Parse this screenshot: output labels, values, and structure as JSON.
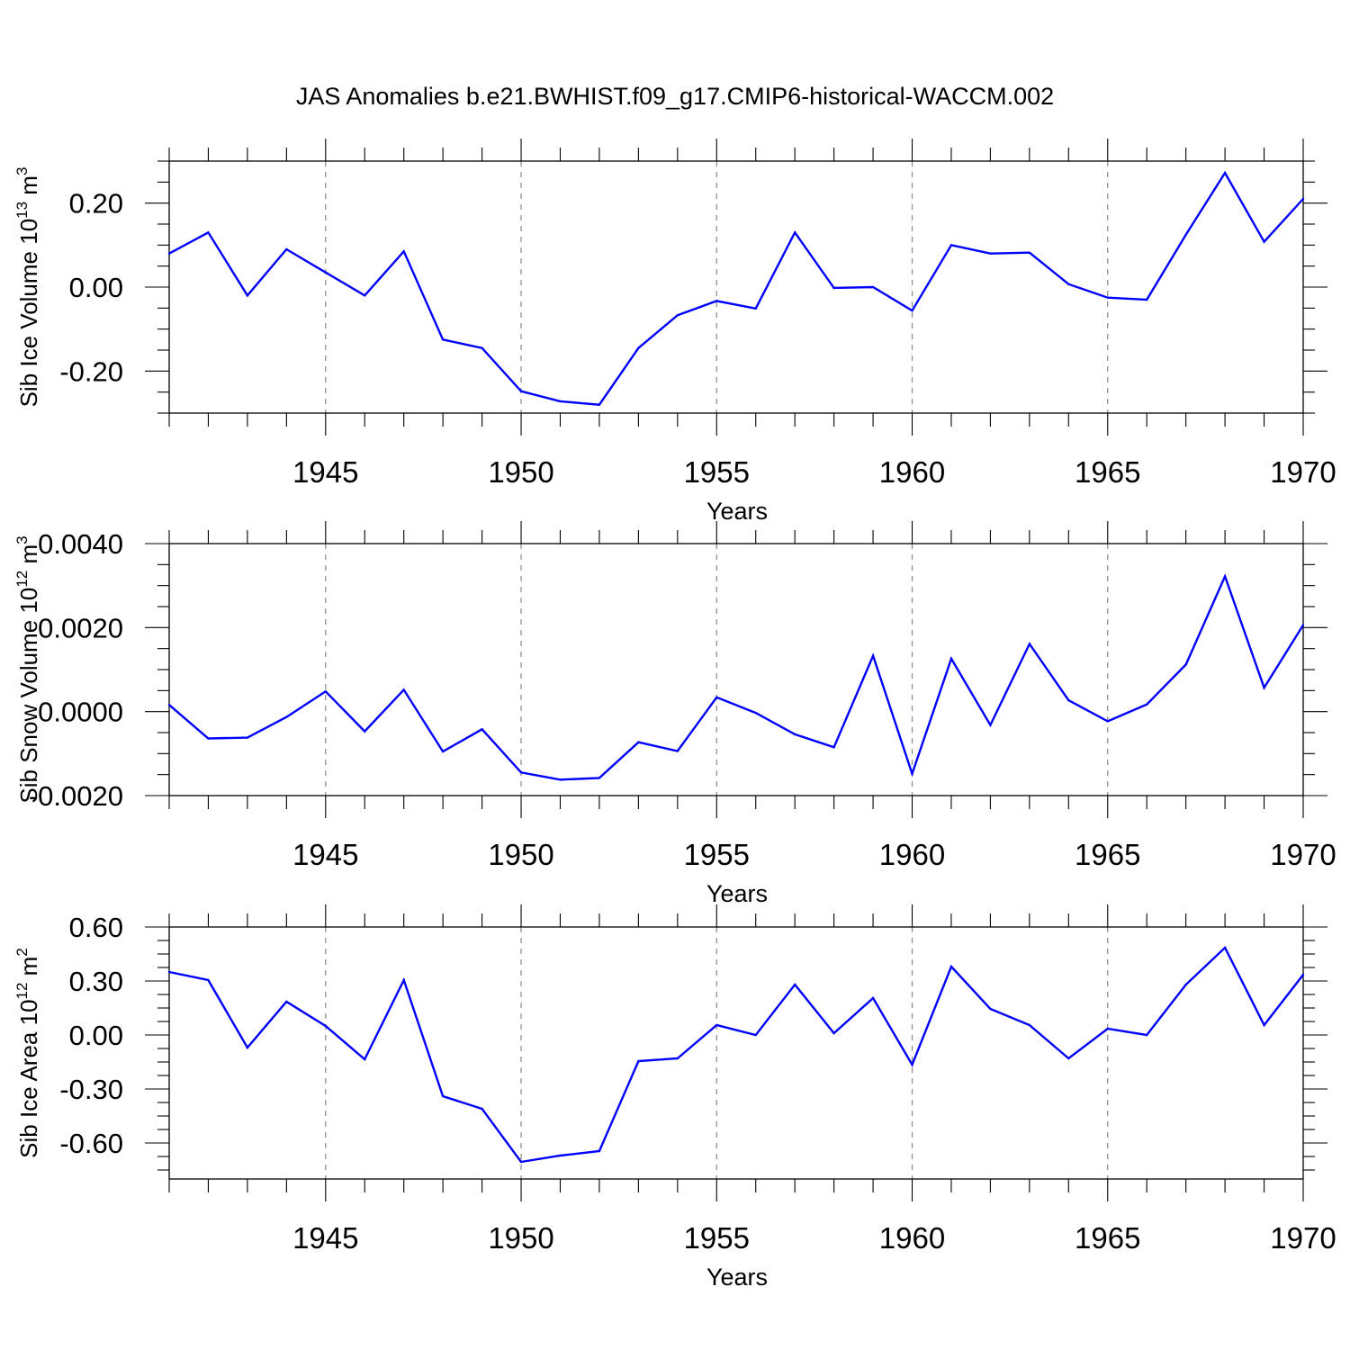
{
  "title": "JAS Anomalies b.e21.BWHIST.f09_g17.CMIP6-historical-WACCM.002",
  "colors": {
    "line": "#0000ff",
    "axis": "#000000",
    "grid": "#888888",
    "background": "#ffffff"
  },
  "chart_data": [
    {
      "type": "line",
      "name": "sib-ice-volume",
      "ylabel_prefix": "Sib Ice Volume 10",
      "ylabel_exp": "13",
      "ylabel_unit": " m",
      "ylabel_unit_exp": "3",
      "xlabel": "Years",
      "xlim": [
        1941,
        1970
      ],
      "ylim": [
        -0.3,
        0.3
      ],
      "xticks": [
        "1945",
        "1950",
        "1955",
        "1960",
        "1965",
        "1970"
      ],
      "yticks": [
        "0.20",
        "0.00",
        "-0.20"
      ],
      "ytick_values": [
        0.2,
        0.0,
        -0.2
      ],
      "grid": "vertical dashed at major x ticks",
      "series": [
        {
          "name": "Sib Ice Volume",
          "x": [
            1941,
            1942,
            1943,
            1944,
            1945,
            1946,
            1947,
            1948,
            1949,
            1950,
            1951,
            1952,
            1953,
            1954,
            1955,
            1956,
            1957,
            1958,
            1959,
            1960,
            1961,
            1962,
            1963,
            1964,
            1965,
            1966,
            1967,
            1968,
            1969,
            1970
          ],
          "values": [
            0.08,
            0.13,
            -0.02,
            0.09,
            0.035,
            -0.02,
            0.085,
            -0.125,
            -0.145,
            -0.248,
            -0.272,
            -0.28,
            -0.145,
            -0.067,
            -0.033,
            -0.051,
            0.13,
            -0.002,
            0.0,
            -0.056,
            0.1,
            0.08,
            0.082,
            0.007,
            -0.025,
            -0.03,
            0.125,
            0.272,
            0.108,
            0.21
          ]
        }
      ]
    },
    {
      "type": "line",
      "name": "sib-snow-volume",
      "ylabel_prefix": "Sib Snow Volume 10",
      "ylabel_exp": "12",
      "ylabel_unit": " m",
      "ylabel_unit_exp": "3",
      "xlabel": "Years",
      "xlim": [
        1941,
        1970
      ],
      "ylim": [
        -0.002,
        0.004
      ],
      "xticks": [
        "1945",
        "1950",
        "1955",
        "1960",
        "1965",
        "1970"
      ],
      "yticks": [
        "0.0040",
        "0.0020",
        "0.0000",
        "-0.0020"
      ],
      "ytick_values": [
        0.004,
        0.002,
        0.0,
        -0.002
      ],
      "grid": "vertical dashed at major x ticks",
      "series": [
        {
          "name": "Sib Snow Volume",
          "x": [
            1941,
            1942,
            1943,
            1944,
            1945,
            1946,
            1947,
            1948,
            1949,
            1950,
            1951,
            1952,
            1953,
            1954,
            1955,
            1956,
            1957,
            1958,
            1959,
            1960,
            1961,
            1962,
            1963,
            1964,
            1965,
            1966,
            1967,
            1968,
            1969,
            1970
          ],
          "values": [
            0.00016,
            -0.00064,
            -0.00062,
            -0.00013,
            0.00048,
            -0.00047,
            0.00052,
            -0.00095,
            -0.00042,
            -0.00145,
            -0.00162,
            -0.00158,
            -0.00073,
            -0.00094,
            0.00034,
            -3e-05,
            -0.00054,
            -0.00085,
            0.00133,
            -0.00148,
            0.00126,
            -0.00032,
            0.00161,
            0.00027,
            -0.00023,
            0.00017,
            0.00112,
            0.00322,
            0.00057,
            0.00206
          ]
        }
      ]
    },
    {
      "type": "line",
      "name": "sib-ice-area",
      "ylabel_prefix": "Sib Ice Area 10",
      "ylabel_exp": "12",
      "ylabel_unit": " m",
      "ylabel_unit_exp": "2",
      "xlabel": "Years",
      "xlim": [
        1941,
        1970
      ],
      "ylim": [
        -0.8,
        0.6
      ],
      "xticks": [
        "1945",
        "1950",
        "1955",
        "1960",
        "1965",
        "1970"
      ],
      "yticks": [
        "0.60",
        "0.30",
        "0.00",
        "-0.30",
        "-0.60"
      ],
      "ytick_values": [
        0.6,
        0.3,
        0.0,
        -0.3,
        -0.6
      ],
      "grid": "vertical dashed at major x ticks",
      "series": [
        {
          "name": "Sib Ice Area",
          "x": [
            1941,
            1942,
            1943,
            1944,
            1945,
            1946,
            1947,
            1948,
            1949,
            1950,
            1951,
            1952,
            1953,
            1954,
            1955,
            1956,
            1957,
            1958,
            1959,
            1960,
            1961,
            1962,
            1963,
            1964,
            1965,
            1966,
            1967,
            1968,
            1969,
            1970
          ],
          "values": [
            0.35,
            0.305,
            -0.07,
            0.185,
            0.05,
            -0.135,
            0.305,
            -0.34,
            -0.41,
            -0.705,
            -0.67,
            -0.645,
            -0.145,
            -0.13,
            0.055,
            0.0,
            0.28,
            0.01,
            0.205,
            -0.165,
            0.38,
            0.145,
            0.055,
            -0.13,
            0.035,
            0.0,
            0.28,
            0.485,
            0.055,
            0.335
          ]
        }
      ]
    }
  ]
}
